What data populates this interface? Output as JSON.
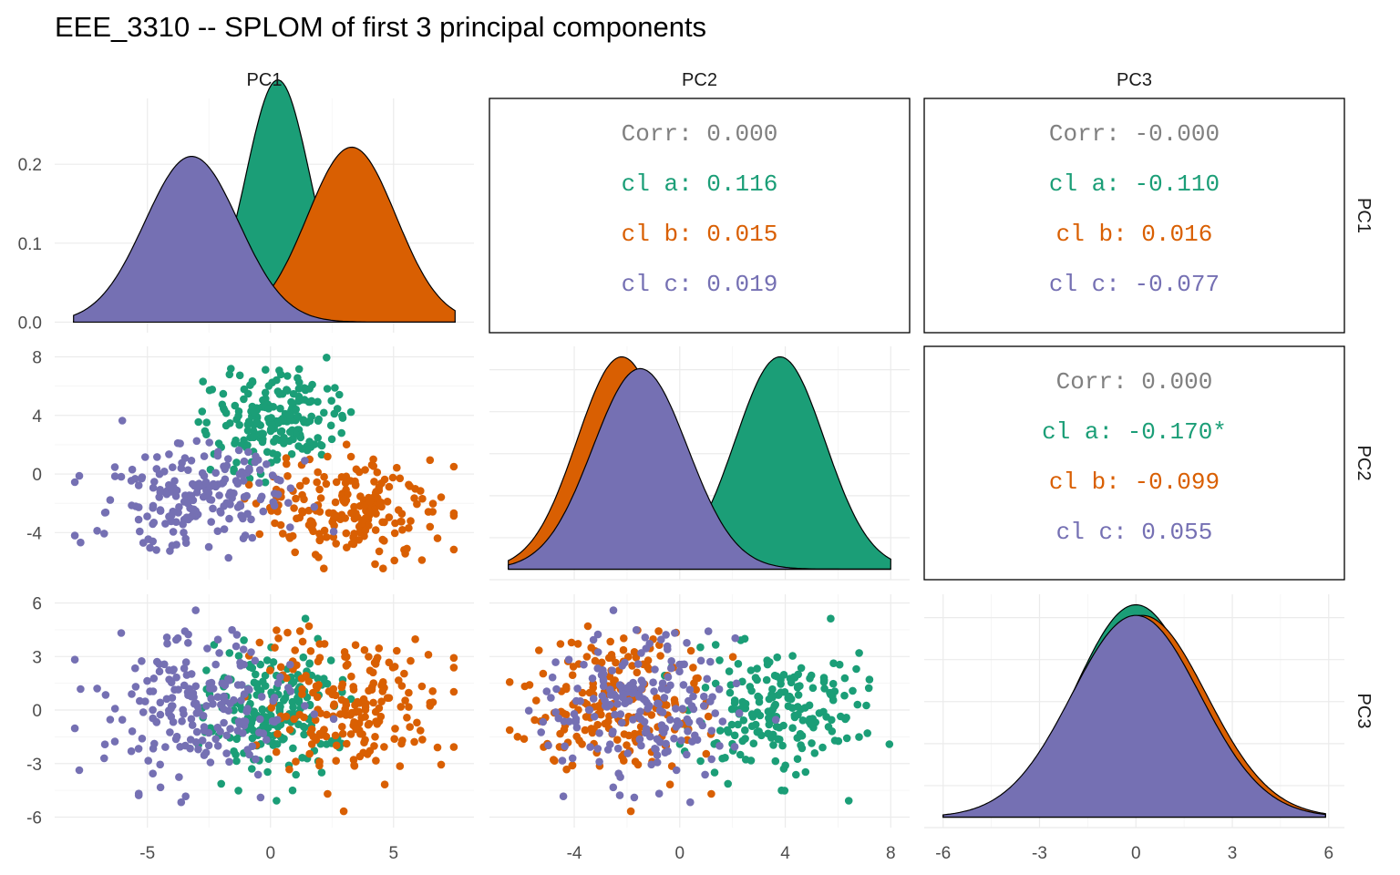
{
  "title": "EEE_3310 -- SPLOM of first 3 principal components",
  "variables": [
    "PC1",
    "PC2",
    "PC3"
  ],
  "colors": {
    "cl a": "#1b9e77",
    "cl b": "#d95f02",
    "cl c": "#7570b3",
    "Corr": "#808080"
  },
  "chart_data": {
    "type": "scatter",
    "kind": "scatterplot-matrix",
    "title": "EEE_3310 -- SPLOM of first 3 principal components",
    "groups": [
      "cl a",
      "cl b",
      "cl c"
    ],
    "axes": {
      "PC1": {
        "range": [
          -8,
          7.5
        ],
        "ticks": [
          -5,
          0,
          5
        ],
        "tick_labels": [
          "-5",
          "0",
          "5"
        ]
      },
      "PC2": {
        "range": [
          -6.5,
          8
        ],
        "ticks": [
          -4,
          0,
          4,
          8
        ],
        "tick_labels": [
          "-4",
          "0",
          "4",
          "8"
        ]
      },
      "PC3": {
        "range": [
          -6,
          5.9
        ],
        "ticks": [
          -6,
          -3,
          0,
          3,
          6
        ],
        "tick_labels": [
          "-6",
          "-3",
          "0",
          "3",
          "6"
        ]
      }
    },
    "density_axis": {
      "range": [
        0,
        0.27
      ],
      "ticks": [
        0,
        0.1,
        0.2
      ],
      "tick_labels": [
        "0.0",
        "0.1",
        "0.2"
      ]
    },
    "group_distributions": {
      "cl a": {
        "PC1": [
          0.3,
          1.3
        ],
        "PC2": [
          3.8,
          1.7
        ],
        "PC3": [
          0.0,
          1.9
        ]
      },
      "cl b": {
        "PC1": [
          3.3,
          1.8
        ],
        "PC2": [
          -2.2,
          1.7
        ],
        "PC3": [
          0.2,
          2.0
        ]
      },
      "cl c": {
        "PC1": [
          -3.2,
          1.9
        ],
        "PC2": [
          -1.5,
          1.8
        ],
        "PC3": [
          0.0,
          2.0
        ]
      }
    },
    "correlations": {
      "PC1-PC2": [
        {
          "label": "Corr:",
          "value": "0.000",
          "group": "Corr"
        },
        {
          "label": "cl a:",
          "value": "0.116",
          "group": "cl a"
        },
        {
          "label": "cl b:",
          "value": "0.015",
          "group": "cl b"
        },
        {
          "label": "cl c:",
          "value": "0.019",
          "group": "cl c"
        }
      ],
      "PC1-PC3": [
        {
          "label": "Corr:",
          "value": "-0.000",
          "group": "Corr"
        },
        {
          "label": "cl a:",
          "value": "-0.110",
          "group": "cl a"
        },
        {
          "label": "cl b:",
          "value": "0.016",
          "group": "cl b"
        },
        {
          "label": "cl c:",
          "value": "-0.077",
          "group": "cl c"
        }
      ],
      "PC2-PC3": [
        {
          "label": "Corr:",
          "value": "0.000",
          "group": "Corr"
        },
        {
          "label": "cl a:",
          "value": "-0.170*",
          "group": "cl a"
        },
        {
          "label": "cl b:",
          "value": "-0.099",
          "group": "cl b"
        },
        {
          "label": "cl c:",
          "value": "0.055",
          "group": "cl c"
        }
      ]
    }
  }
}
